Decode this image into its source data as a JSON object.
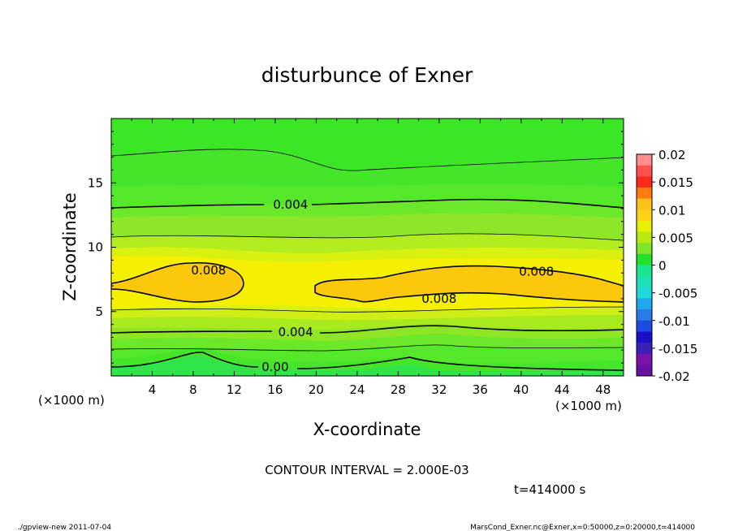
{
  "chart_data": {
    "type": "heatmap",
    "title": "disturbunce of Exner",
    "xlabel": "X-coordinate",
    "ylabel": "Z-coordinate",
    "x_unit": "(×1000 m)",
    "y_unit": "(×1000 m)",
    "xlim": [
      0,
      50
    ],
    "ylim": [
      0,
      20
    ],
    "x_ticks": [
      4,
      8,
      12,
      16,
      20,
      24,
      28,
      32,
      36,
      40,
      44,
      48
    ],
    "y_ticks": [
      5,
      10,
      15
    ],
    "colorbar": {
      "levels": [
        -0.02,
        -0.015,
        -0.01,
        -0.005,
        0,
        0.005,
        0.01,
        0.015,
        0.02
      ],
      "labels": [
        "0.02",
        "0.015",
        "0.01",
        "0.005",
        "0",
        "-0.005",
        "-0.01",
        "-0.015",
        "-0.02"
      ]
    },
    "contour_interval": 0.002,
    "contour_labels": [
      {
        "text": "0.004",
        "x": 17.5,
        "z": 13.3
      },
      {
        "text": "0.008",
        "x": 9.5,
        "z": 8.2
      },
      {
        "text": "0.008",
        "x": 41.5,
        "z": 8.1
      },
      {
        "text": "0.008",
        "x": 32,
        "z": 6.0
      },
      {
        "text": "0.004",
        "x": 18,
        "z": 3.4
      },
      {
        "text": "0.00",
        "x": 16,
        "z": 0.7
      }
    ],
    "field_description": "Exner disturbance, maximum near 0.009 around z=7 (two regions x=5-13 and x=20-50), lower near surface and aloft"
  },
  "text": {
    "title": "disturbunce of Exner",
    "xlabel": "X-coordinate",
    "ylabel": "Z-coordinate",
    "x_unit_left": "(×1000 m)",
    "x_unit_right": "(×1000 m)",
    "contour_interval": "CONTOUR INTERVAL = 2.000E-03",
    "time": "t=414000 s",
    "footer_left": "./gpview-new   2011-07-04",
    "footer_right": "MarsCond_Exner.nc@Exner,x=0:50000,z=0:20000,t=414000"
  },
  "colors": {
    "c_m020": "#7d12a8",
    "c_m015": "#1a10c8",
    "c_m010": "#2a7ae8",
    "c_m005": "#1fd8d8",
    "c_000": "#19e58a",
    "c_005": "#7fe52a",
    "c_010": "#e7f000",
    "c_015": "#ffc21a",
    "c_020": "#ff2a1a",
    "c_top": "#ff8f8f"
  }
}
